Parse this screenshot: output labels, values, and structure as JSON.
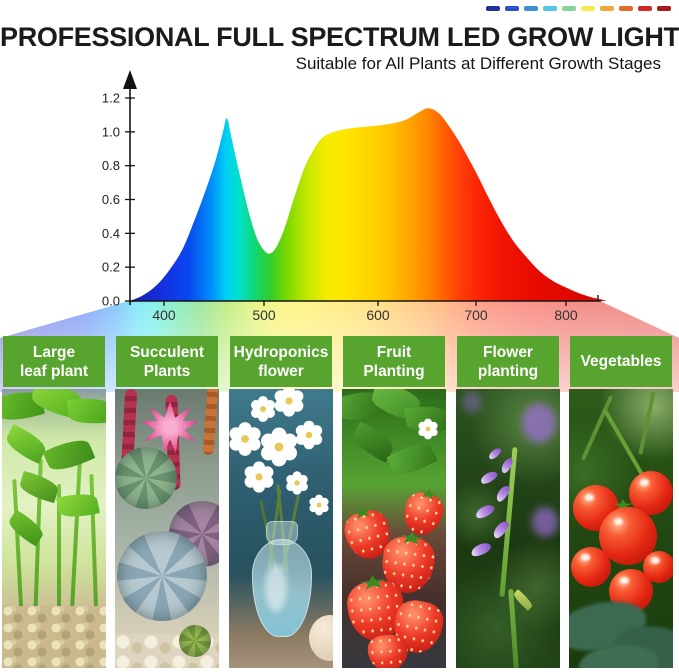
{
  "header": {
    "title": "PROFESSIONAL FULL SPECTRUM LED GROW LIGHT",
    "subtitle": "Suitable for All Plants at Different Growth Stages",
    "accent_dashes": [
      "#23309e",
      "#2a52c8",
      "#3f8fd2",
      "#4fc8e0",
      "#8ad49a",
      "#f2ec52",
      "#f0a83a",
      "#e06c28",
      "#cc2c24",
      "#aa1c1c"
    ]
  },
  "chart_data": {
    "type": "area",
    "title": "",
    "xlabel": "",
    "ylabel": "",
    "grid": false,
    "legend": "none",
    "xlim_nm": [
      365,
      845
    ],
    "ylim": [
      0,
      1.2
    ],
    "x_ticks": [
      "400",
      "500",
      "600",
      "700",
      "800"
    ],
    "y_ticks": [
      "0.0",
      "0.2",
      "0.4",
      "0.6",
      "0.8",
      "1.0",
      "1.2"
    ],
    "points": [
      [
        365,
        0
      ],
      [
        378,
        0.03
      ],
      [
        392,
        0.09
      ],
      [
        405,
        0.18
      ],
      [
        418,
        0.3
      ],
      [
        430,
        0.47
      ],
      [
        442,
        0.66
      ],
      [
        452,
        0.84
      ],
      [
        459,
        1.0
      ],
      [
        463,
        1.08
      ],
      [
        468,
        0.95
      ],
      [
        476,
        0.74
      ],
      [
        485,
        0.52
      ],
      [
        493,
        0.37
      ],
      [
        500,
        0.3
      ],
      [
        505,
        0.28
      ],
      [
        511,
        0.32
      ],
      [
        518,
        0.43
      ],
      [
        526,
        0.6
      ],
      [
        535,
        0.78
      ],
      [
        544,
        0.9
      ],
      [
        552,
        0.97
      ],
      [
        562,
        1.0
      ],
      [
        575,
        1.02
      ],
      [
        590,
        1.03
      ],
      [
        604,
        1.04
      ],
      [
        615,
        1.05
      ],
      [
        628,
        1.07
      ],
      [
        640,
        1.11
      ],
      [
        651,
        1.14
      ],
      [
        662,
        1.11
      ],
      [
        673,
        1.03
      ],
      [
        685,
        0.92
      ],
      [
        700,
        0.76
      ],
      [
        714,
        0.61
      ],
      [
        728,
        0.47
      ],
      [
        742,
        0.35
      ],
      [
        756,
        0.26
      ],
      [
        770,
        0.18
      ],
      [
        785,
        0.12
      ],
      [
        800,
        0.08
      ],
      [
        815,
        0.045
      ],
      [
        828,
        0.022
      ],
      [
        840,
        0.008
      ],
      [
        845,
        0
      ]
    ],
    "spectrum_gradient": [
      {
        "nm": 365,
        "color": "#1c1cb0"
      },
      {
        "nm": 400,
        "color": "#1530e0"
      },
      {
        "nm": 425,
        "color": "#0948f0"
      },
      {
        "nm": 448,
        "color": "#0090f8"
      },
      {
        "nm": 462,
        "color": "#00d0f4"
      },
      {
        "nm": 475,
        "color": "#00e0cc"
      },
      {
        "nm": 490,
        "color": "#10d878"
      },
      {
        "nm": 505,
        "color": "#30cc30"
      },
      {
        "nm": 520,
        "color": "#7ad800"
      },
      {
        "nm": 538,
        "color": "#c4e800"
      },
      {
        "nm": 555,
        "color": "#f4ec00"
      },
      {
        "nm": 572,
        "color": "#ffe400"
      },
      {
        "nm": 595,
        "color": "#ffd200"
      },
      {
        "nm": 615,
        "color": "#ffbe00"
      },
      {
        "nm": 635,
        "color": "#ffa000"
      },
      {
        "nm": 652,
        "color": "#ff8400"
      },
      {
        "nm": 668,
        "color": "#ff6000"
      },
      {
        "nm": 685,
        "color": "#ff3c08"
      },
      {
        "nm": 705,
        "color": "#fa2404"
      },
      {
        "nm": 730,
        "color": "#f01402"
      },
      {
        "nm": 760,
        "color": "#e80c00"
      },
      {
        "nm": 800,
        "color": "#e00800"
      },
      {
        "nm": 845,
        "color": "#dc0600"
      }
    ]
  },
  "panels": [
    {
      "label_lines": [
        "Large",
        "leaf plant"
      ],
      "photo": "bright green leafy seedlings growing in gravel"
    },
    {
      "label_lines": [
        "Succulent",
        "Plants"
      ],
      "photo": "succulent rosettes with pink spiky flower and red blooms"
    },
    {
      "label_lines": [
        "Hydroponics",
        "flower"
      ],
      "photo": "white flowers in a glass vase of water"
    },
    {
      "label_lines": [
        "Fruit",
        "Planting"
      ],
      "photo": "strawberry plant with ripe red strawberries"
    },
    {
      "label_lines": [
        "Flower",
        "planting"
      ],
      "photo": "stem with purple flower buds on green bokeh"
    },
    {
      "label_lines": [
        "Vegetables"
      ],
      "photo": "red tomatoes ripening on the vine"
    }
  ],
  "colors": {
    "label_green": "#57a42e",
    "title_text": "#1b1b1b",
    "axis": "#161616",
    "tick_label": "#333333"
  }
}
